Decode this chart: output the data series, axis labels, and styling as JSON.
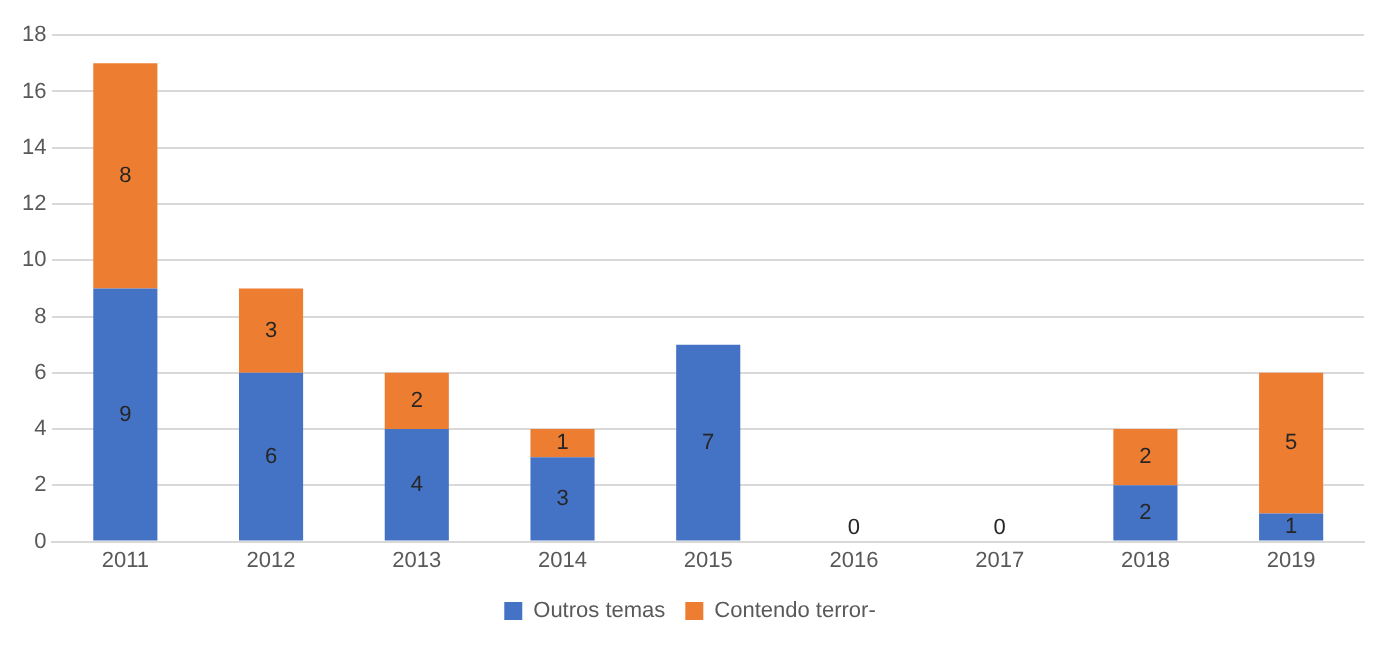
{
  "chart_data": {
    "type": "bar",
    "stacked": true,
    "categories": [
      "2011",
      "2012",
      "2013",
      "2014",
      "2015",
      "2016",
      "2017",
      "2018",
      "2019"
    ],
    "series": [
      {
        "name": "Outros temas",
        "color": "#4472c4",
        "values": [
          9,
          6,
          4,
          3,
          7,
          0,
          0,
          2,
          1
        ],
        "value_labels": [
          "9",
          "6",
          "4",
          "3",
          "7",
          "0",
          "0",
          "2",
          "1"
        ]
      },
      {
        "name": "Contendo terror-",
        "color": "#ed7d31",
        "values": [
          8,
          3,
          2,
          1,
          0,
          0,
          0,
          2,
          5
        ],
        "value_labels": [
          "8",
          "3",
          "2",
          "1",
          null,
          null,
          null,
          "2",
          "5"
        ]
      }
    ],
    "ylim": [
      0,
      18
    ],
    "yticks": [
      0,
      2,
      4,
      6,
      8,
      10,
      12,
      14,
      16,
      18
    ],
    "grid": "y",
    "legend": "bottom"
  }
}
